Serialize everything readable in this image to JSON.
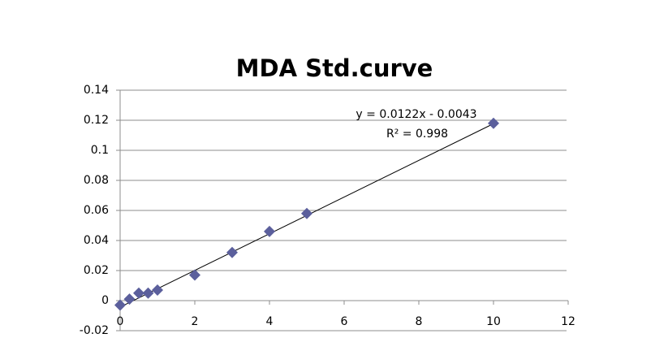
{
  "chart_data": {
    "type": "scatter",
    "title": "MDA Std.curve",
    "x": [
      0,
      0.25,
      0.5,
      0.75,
      1,
      2,
      3,
      4,
      5,
      10
    ],
    "values": [
      -0.003,
      0.001,
      0.005,
      0.005,
      0.007,
      0.017,
      0.032,
      0.046,
      0.058,
      0.118
    ],
    "color": "#5b5f9c",
    "xlim": [
      0,
      12
    ],
    "xticks": [
      0,
      2,
      4,
      6,
      8,
      10,
      12
    ],
    "ylim": [
      -0.02,
      0.14
    ],
    "yticks": [
      -0.02,
      0,
      0.02,
      0.04,
      0.06,
      0.08,
      0.1,
      0.12,
      0.14
    ],
    "grid": true,
    "trendline": {
      "slope": 0.0122,
      "intercept": -0.0043,
      "equation": "y = 0.0122x - 0.0043",
      "r2_label": "R² = 0.998"
    }
  }
}
